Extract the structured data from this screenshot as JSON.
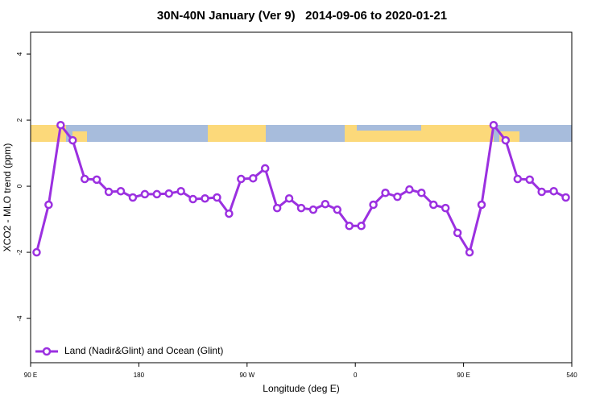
{
  "chart_data": {
    "type": "line",
    "title": "30N-40N January (Ver 9)   2014-09-06 to 2020-01-21",
    "x_label": "Longitude (deg E)",
    "y_label": "XCO2 - MLO trend (ppm)",
    "x": [
      95,
      105,
      115,
      125,
      135,
      145,
      155,
      165,
      175,
      185,
      195,
      205,
      215,
      225,
      235,
      245,
      255,
      265,
      275,
      285,
      295,
      305,
      315,
      325,
      335,
      345,
      355,
      365,
      375,
      385,
      395,
      405,
      415,
      425,
      435,
      445,
      455,
      465,
      475,
      485,
      495,
      505,
      515,
      525,
      535
    ],
    "series": [
      {
        "name": "Land (Nadir&Glint) and Ocean (Glint)",
        "color": "#9b30e0",
        "values": [
          -2.0,
          -0.56,
          1.85,
          1.39,
          0.22,
          0.2,
          -0.17,
          -0.15,
          -0.34,
          -0.24,
          -0.24,
          -0.22,
          -0.15,
          -0.39,
          -0.37,
          -0.34,
          -0.83,
          0.22,
          0.24,
          0.54,
          -0.66,
          -0.37,
          -0.66,
          -0.71,
          -0.54,
          -0.71,
          -1.2,
          -1.2,
          -0.56,
          -0.2,
          -0.32,
          -0.1,
          -0.2,
          -0.56,
          -0.66,
          -1.41,
          -2.0,
          -0.56,
          1.85,
          1.39,
          0.22,
          0.2,
          -0.17,
          -0.15,
          -0.34
        ]
      }
    ],
    "xlim": [
      90,
      540
    ],
    "xticks": [
      {
        "value": 90,
        "label": "90 E"
      },
      180,
      {
        "value": 270,
        "label": "90 W"
      },
      {
        "value": 360,
        "label": "0"
      },
      {
        "value": 450,
        "label": "90 E"
      },
      540
    ],
    "ylim": [
      -5.34,
      4.66
    ],
    "yticks": [
      -4,
      -2,
      0,
      2,
      4
    ],
    "legend": "bottom-left"
  }
}
